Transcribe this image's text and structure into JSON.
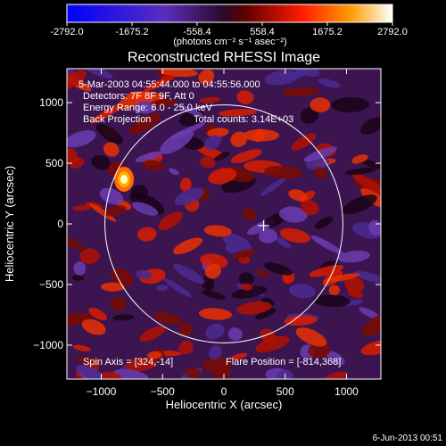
{
  "chart_data": {
    "type": "heatmap",
    "title": "Reconstructed RHESSI Image",
    "xlabel": "Heliocentric X (arcsec)",
    "ylabel": "Heliocentric Y (arcsec)",
    "xlim": [
      -1280,
      1280
    ],
    "ylim": [
      -1280,
      1280
    ],
    "x_ticks": [
      -1000,
      -500,
      0,
      500,
      1000
    ],
    "y_ticks": [
      -1000,
      -500,
      0,
      500,
      1000
    ],
    "colorbar": {
      "range": [
        -2792.0,
        2792.0
      ],
      "tick_values": [
        -2792.0,
        -1675.2,
        -558.4,
        558.4,
        1675.2,
        2792.0
      ],
      "tick_labels": [
        "-2792.0",
        "-1675.2",
        "-558.4",
        "558.4",
        "1675.2",
        "2792.0"
      ],
      "unit_label": "(photons cm⁻² s⁻¹ asec⁻²)"
    },
    "annotations": {
      "time_range": "5-Mar-2003 04:55:44.000 to 04:55:56.000",
      "detectors": "Detectors: 7F 8F 9F, Att 0",
      "energy_range": "Energy Range: 6.0 - 25.0 keV",
      "method": "Back Projection",
      "total_counts": "Total counts: 3.14E+03",
      "spin_axis": "Spin Axis = [324,-14]",
      "flare_position": "Flare Position = [-814,368]",
      "plot_date": "6-Jun-2013 00:51"
    },
    "solar_disk": {
      "center": [
        0,
        0
      ],
      "radius": 970
    },
    "crosshair": [
      324,
      -14
    ],
    "bright_source": [
      -814,
      368
    ],
    "colors": {
      "negative": "#2020ff",
      "mid": "#6030a0",
      "positive": "#ff2000",
      "peak": "#ffffc0"
    }
  }
}
